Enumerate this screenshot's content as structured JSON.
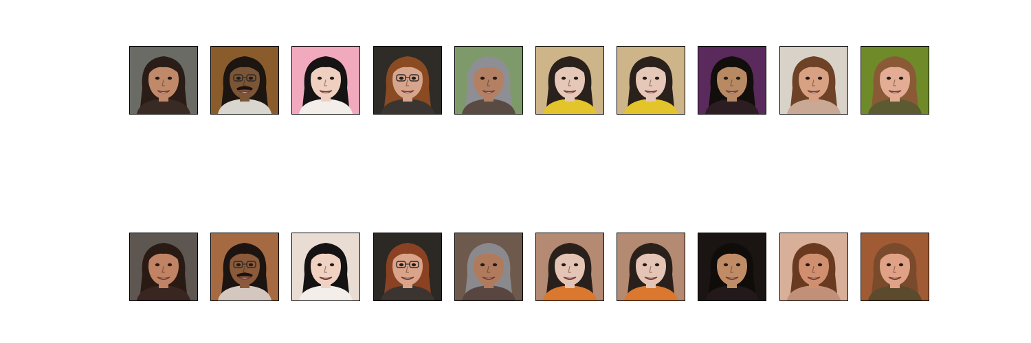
{
  "figure": {
    "rows": [
      {
        "label": "",
        "tiles": [
          {
            "subject": "woman-dark-wavy-hair",
            "skin": "#c08a6a",
            "hair": "#2a1c16",
            "bg": "#6b6b66",
            "clothes": "#3a2a24",
            "glasses": false,
            "mustache": false
          },
          {
            "subject": "man-glasses-mustache",
            "skin": "#7a5536",
            "hair": "#1c1510",
            "bg": "#8a5c2c",
            "clothes": "#d8d6cf",
            "glasses": true,
            "mustache": true
          },
          {
            "subject": "girl-bangs-microphone",
            "skin": "#efd0c0",
            "hair": "#151313",
            "bg": "#f0a9bd",
            "clothes": "#f4eeea",
            "glasses": false,
            "mustache": false
          },
          {
            "subject": "woman-red-hair-glasses",
            "skin": "#d7a48c",
            "hair": "#8a4a22",
            "bg": "#2f2b26",
            "clothes": "#3b3531",
            "glasses": true,
            "mustache": false
          },
          {
            "subject": "older-man-smiling",
            "skin": "#b38064",
            "hair": "#8d8f94",
            "bg": "#7f9a6a",
            "clothes": "#5a4a44",
            "glasses": false,
            "mustache": false
          },
          {
            "subject": "baby-yellow-shirt",
            "skin": "#e6c8b8",
            "hair": "#2a211c",
            "bg": "#cdb489",
            "clothes": "#e3c42a",
            "glasses": false,
            "mustache": false
          },
          {
            "subject": "baby-yellow-shirt",
            "skin": "#e6c8b8",
            "hair": "#2a211c",
            "bg": "#cdb489",
            "clothes": "#e3c42a",
            "glasses": false,
            "mustache": false
          },
          {
            "subject": "girl-long-black-hair",
            "skin": "#b88a64",
            "hair": "#120e0c",
            "bg": "#5a2a5c",
            "clothes": "#2b1d22",
            "glasses": false,
            "mustache": false
          },
          {
            "subject": "woman-smiling-brown-hair",
            "skin": "#d8a183",
            "hair": "#6e4227",
            "bg": "#d9d2c8",
            "clothes": "#c9a995",
            "glasses": false,
            "mustache": false
          },
          {
            "subject": "woman-laughing-outdoors",
            "skin": "#e2ad94",
            "hair": "#8a5a36",
            "bg": "#6f8a28",
            "clothes": "#5c5a30",
            "glasses": false,
            "mustache": false
          }
        ]
      },
      {
        "label": "",
        "tiles": [
          {
            "subject": "woman-dark-wavy-hair",
            "skin": "#c08363",
            "hair": "#2a1a14",
            "bg": "#5e5650",
            "clothes": "#3a2620",
            "glasses": false,
            "mustache": false
          },
          {
            "subject": "man-glasses-mustache",
            "skin": "#8a5a3a",
            "hair": "#1c1410",
            "bg": "#a56a42",
            "clothes": "#d4c7bf",
            "glasses": true,
            "mustache": true
          },
          {
            "subject": "girl-bangs-microphone",
            "skin": "#f0d2c2",
            "hair": "#141212",
            "bg": "#e9dcd3",
            "clothes": "#f4eeea",
            "glasses": false,
            "mustache": false
          },
          {
            "subject": "woman-red-hair-glasses",
            "skin": "#d9a48a",
            "hair": "#8a4222",
            "bg": "#2c2824",
            "clothes": "#3b3431",
            "glasses": true,
            "mustache": false
          },
          {
            "subject": "older-man-smiling",
            "skin": "#b07a5c",
            "hair": "#8a8a8e",
            "bg": "#6e5a4c",
            "clothes": "#5a4640",
            "glasses": false,
            "mustache": false
          },
          {
            "subject": "baby-blue-orange-shirt",
            "skin": "#e4c4b4",
            "hair": "#2a201b",
            "bg": "#b48a72",
            "clothes": "#d9782e",
            "glasses": false,
            "mustache": false
          },
          {
            "subject": "baby-blue-orange-shirt",
            "skin": "#e4c4b4",
            "hair": "#2a201b",
            "bg": "#b48a72",
            "clothes": "#d9782e",
            "glasses": false,
            "mustache": false
          },
          {
            "subject": "girl-long-black-hair",
            "skin": "#c08c66",
            "hair": "#100c0a",
            "bg": "#1a1412",
            "clothes": "#24191a",
            "glasses": false,
            "mustache": false
          },
          {
            "subject": "woman-smiling-brown-hair",
            "skin": "#d09070",
            "hair": "#6a3a20",
            "bg": "#d8b09a",
            "clothes": "#c09078",
            "glasses": false,
            "mustache": false
          },
          {
            "subject": "woman-laughing-outdoors",
            "skin": "#e0a286",
            "hair": "#7a4a2c",
            "bg": "#a05a34",
            "clothes": "#5c4a2c",
            "glasses": false,
            "mustache": false
          }
        ]
      }
    ]
  }
}
